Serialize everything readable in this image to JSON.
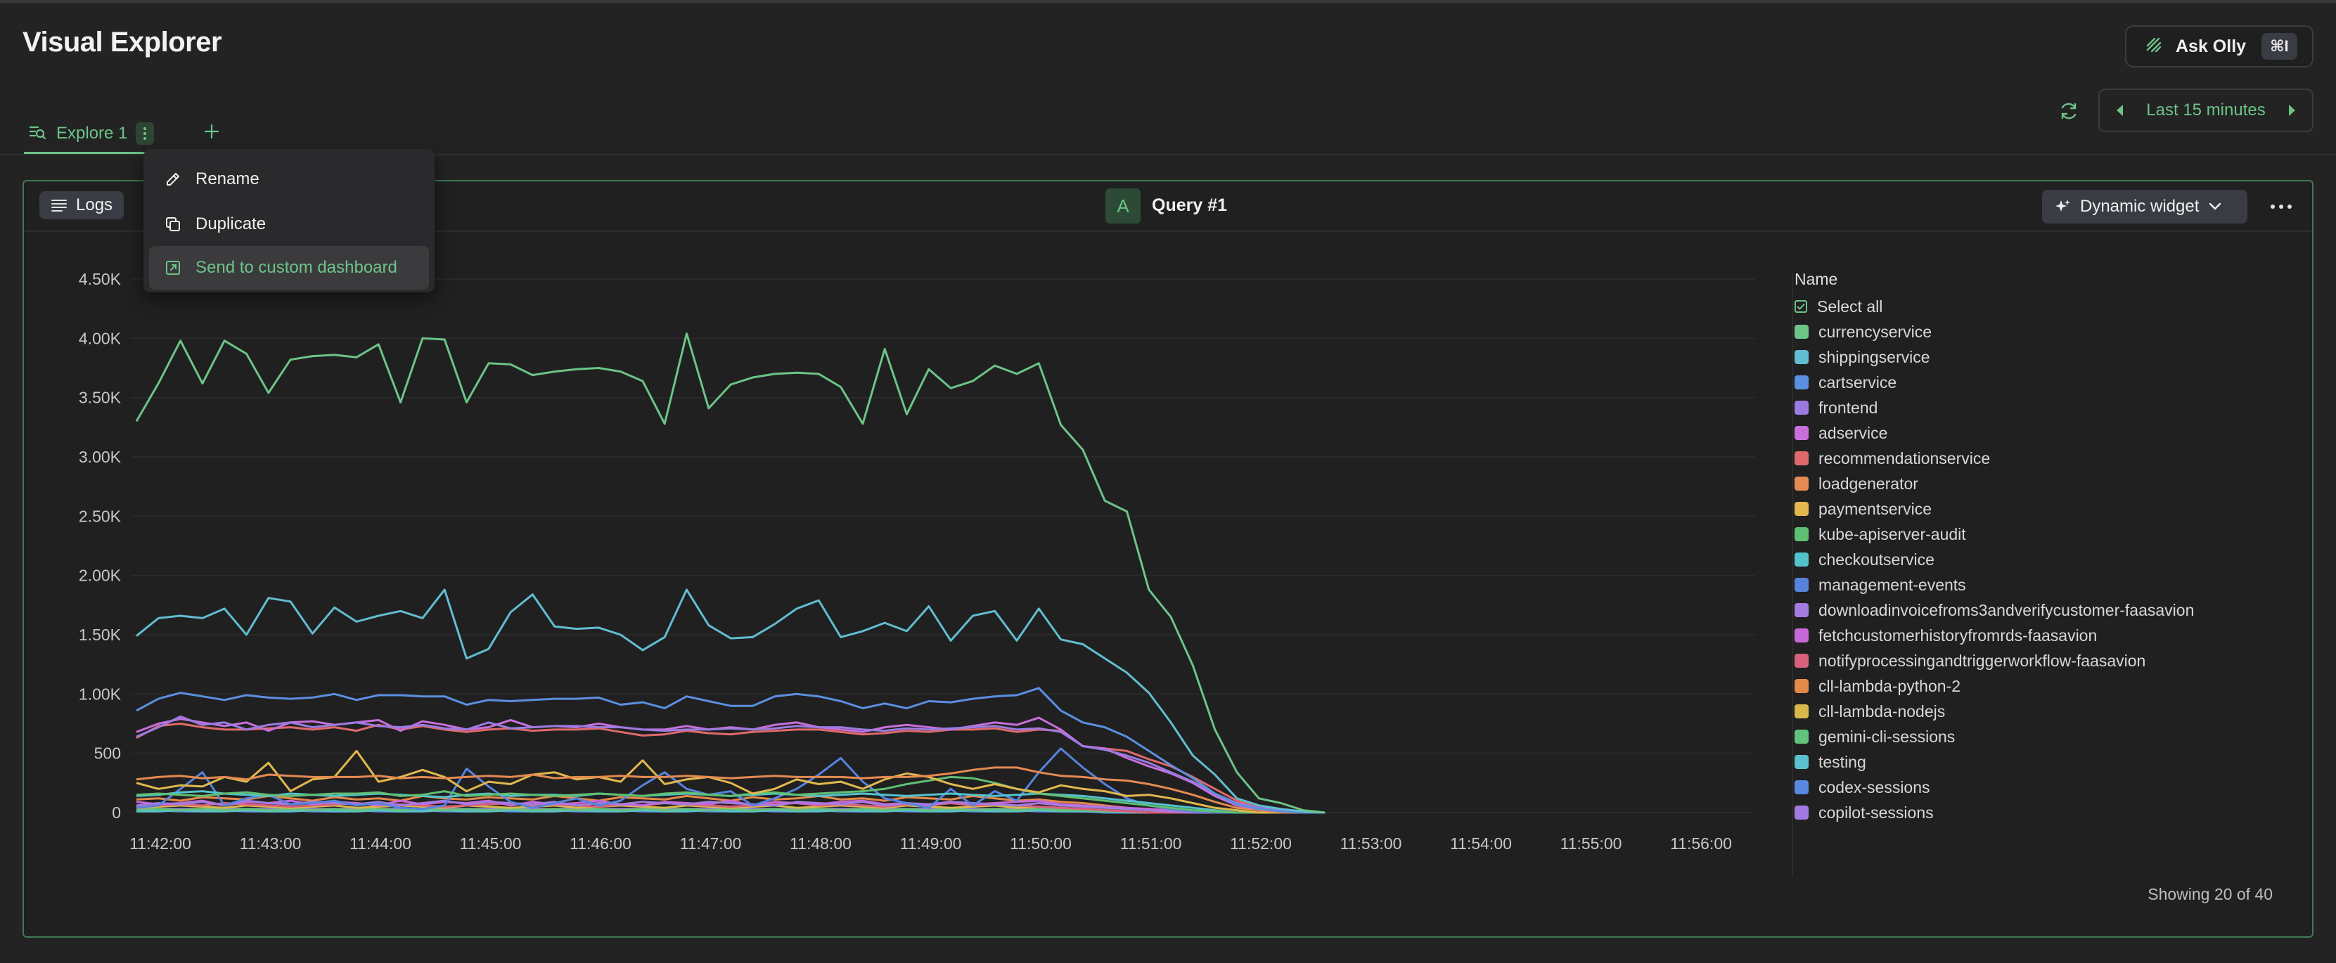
{
  "header": {
    "title": "Visual Explorer",
    "ask_label": "Ask Olly",
    "ask_shortcut": "⌘I"
  },
  "tabs": [
    {
      "label": "Explore 1"
    }
  ],
  "time_range": {
    "label": "Last 15 minutes"
  },
  "tab_menu": {
    "items": [
      {
        "label": "Rename",
        "icon": "pencil-icon"
      },
      {
        "label": "Duplicate",
        "icon": "copy-icon"
      },
      {
        "label": "Send to custom dashboard",
        "icon": "send-to-dashboard-icon"
      }
    ]
  },
  "panel": {
    "source_label": "Logs",
    "query_badge": "A",
    "query_title": "Query #1",
    "widget_label": "Dynamic widget",
    "legend_title": "Name",
    "select_all": "Select all",
    "showing": "Showing 20 of 40"
  },
  "colors": {
    "accent": "#6cc487",
    "panel_border": "#3f7a52",
    "background": "#232324"
  },
  "chart_data": {
    "type": "line",
    "xlabel": "",
    "ylabel": "",
    "x_ticks": [
      "11:42:00",
      "11:43:00",
      "11:44:00",
      "11:45:00",
      "11:46:00",
      "11:47:00",
      "11:48:00",
      "11:49:00",
      "11:50:00",
      "11:51:00",
      "11:52:00",
      "11:53:00",
      "11:54:00",
      "11:55:00",
      "11:56:00"
    ],
    "y_ticks": [
      "0",
      "500",
      "1.00K",
      "1.50K",
      "2.00K",
      "2.50K",
      "3.00K",
      "3.50K",
      "4.00K",
      "4.50K"
    ],
    "ylim": [
      0,
      4500
    ],
    "x_start_minute": 0,
    "x_step_minutes": 0.2,
    "grid": true,
    "legend_position": "right",
    "series": [
      {
        "name": "currencyservice",
        "color": "#6cc487",
        "values": [
          3300,
          3620,
          3980,
          3620,
          3980,
          3870,
          3540,
          3820,
          3850,
          3860,
          3840,
          3950,
          3460,
          4000,
          3990,
          3460,
          3790,
          3780,
          3690,
          3720,
          3740,
          3750,
          3720,
          3640,
          3280,
          4040,
          3410,
          3610,
          3670,
          3700,
          3710,
          3700,
          3590,
          3280,
          3910,
          3360,
          3740,
          3580,
          3640,
          3770,
          3700,
          3790,
          3270,
          3060,
          2630,
          2540,
          1880,
          1650,
          1240,
          700,
          340,
          120,
          80,
          20,
          0
        ]
      },
      {
        "name": "shippingservice",
        "color": "#62bdd1",
        "values": [
          1490,
          1640,
          1660,
          1640,
          1720,
          1500,
          1810,
          1780,
          1510,
          1730,
          1610,
          1660,
          1700,
          1640,
          1880,
          1300,
          1380,
          1690,
          1840,
          1570,
          1550,
          1560,
          1500,
          1370,
          1480,
          1880,
          1580,
          1470,
          1480,
          1590,
          1720,
          1790,
          1480,
          1530,
          1600,
          1530,
          1740,
          1450,
          1660,
          1700,
          1450,
          1720,
          1460,
          1420,
          1300,
          1180,
          1010,
          760,
          480,
          320,
          120,
          60,
          30,
          10,
          0
        ]
      },
      {
        "name": "cartservice",
        "color": "#5b8fe0",
        "values": [
          860,
          960,
          1010,
          980,
          950,
          990,
          970,
          960,
          970,
          1000,
          950,
          990,
          990,
          980,
          980,
          910,
          950,
          940,
          950,
          960,
          960,
          970,
          910,
          930,
          880,
          980,
          940,
          900,
          900,
          980,
          1000,
          980,
          940,
          880,
          920,
          880,
          940,
          930,
          960,
          980,
          990,
          1050,
          860,
          760,
          720,
          640,
          520,
          400,
          290,
          160,
          70,
          30,
          10,
          0,
          0
        ]
      },
      {
        "name": "frontend",
        "color": "#9c7be0",
        "values": [
          640,
          720,
          810,
          740,
          760,
          700,
          740,
          760,
          720,
          740,
          760,
          730,
          720,
          740,
          710,
          700,
          760,
          710,
          720,
          730,
          730,
          720,
          720,
          700,
          690,
          700,
          700,
          710,
          700,
          710,
          730,
          720,
          720,
          700,
          690,
          710,
          700,
          710,
          720,
          730,
          700,
          710,
          680,
          560,
          530,
          480,
          420,
          340,
          260,
          160,
          80,
          40,
          20,
          0,
          0
        ]
      },
      {
        "name": "adservice",
        "color": "#c86fdc",
        "values": [
          680,
          750,
          790,
          760,
          730,
          760,
          690,
          760,
          770,
          740,
          760,
          780,
          690,
          770,
          740,
          700,
          720,
          780,
          720,
          730,
          720,
          750,
          720,
          700,
          700,
          730,
          700,
          720,
          700,
          740,
          760,
          720,
          700,
          680,
          720,
          740,
          720,
          700,
          730,
          760,
          740,
          800,
          700,
          560,
          540,
          460,
          390,
          330,
          250,
          140,
          60,
          30,
          10,
          0,
          0
        ]
      },
      {
        "name": "recommendationservice",
        "color": "#e06a6a",
        "values": [
          630,
          730,
          750,
          720,
          700,
          700,
          710,
          720,
          700,
          720,
          690,
          740,
          700,
          730,
          700,
          680,
          700,
          710,
          690,
          700,
          700,
          710,
          680,
          650,
          660,
          690,
          670,
          660,
          680,
          690,
          700,
          700,
          680,
          660,
          670,
          690,
          680,
          700,
          700,
          710,
          680,
          700,
          690,
          560,
          540,
          520,
          450,
          390,
          300,
          200,
          100,
          40,
          10,
          0,
          0
        ]
      },
      {
        "name": "loadgenerator",
        "color": "#e48a52",
        "values": [
          280,
          300,
          310,
          290,
          300,
          280,
          320,
          310,
          300,
          300,
          300,
          310,
          290,
          300,
          290,
          300,
          310,
          300,
          320,
          290,
          300,
          300,
          310,
          300,
          300,
          310,
          300,
          290,
          300,
          310,
          300,
          300,
          300,
          290,
          300,
          300,
          310,
          330,
          360,
          380,
          380,
          340,
          310,
          300,
          280,
          270,
          240,
          200,
          150,
          90,
          40,
          20,
          0,
          0,
          0
        ]
      },
      {
        "name": "paymentservice",
        "color": "#e2b84e",
        "values": [
          250,
          200,
          230,
          220,
          300,
          260,
          420,
          180,
          280,
          300,
          520,
          260,
          300,
          360,
          300,
          180,
          260,
          240,
          320,
          340,
          280,
          300,
          260,
          440,
          240,
          280,
          300,
          250,
          160,
          200,
          280,
          240,
          260,
          200,
          280,
          330,
          300,
          240,
          200,
          240,
          200,
          170,
          230,
          200,
          180,
          140,
          150,
          120,
          80,
          40,
          20,
          0,
          0,
          0,
          0
        ]
      },
      {
        "name": "kube-apiserver-audit",
        "color": "#5fbf72",
        "values": [
          150,
          160,
          150,
          140,
          160,
          170,
          150,
          140,
          150,
          160,
          160,
          170,
          140,
          150,
          180,
          140,
          150,
          160,
          150,
          140,
          150,
          160,
          150,
          140,
          160,
          170,
          150,
          140,
          160,
          170,
          150,
          160,
          170,
          180,
          200,
          240,
          270,
          300,
          290,
          250,
          200,
          160,
          140,
          120,
          100,
          80,
          60,
          40,
          20,
          10,
          0,
          0,
          0,
          0,
          0
        ]
      },
      {
        "name": "checkoutservice",
        "color": "#54c2cc",
        "values": [
          140,
          150,
          170,
          180,
          160,
          150,
          140,
          160,
          150,
          140,
          150,
          160,
          150,
          140,
          130,
          150,
          160,
          140,
          150,
          150,
          140,
          160,
          150,
          140,
          150,
          160,
          150,
          140,
          150,
          160,
          150,
          140,
          150,
          160,
          150,
          140,
          150,
          160,
          150,
          140,
          150,
          160,
          150,
          140,
          120,
          100,
          80,
          60,
          40,
          20,
          0,
          0,
          0,
          0,
          0
        ]
      },
      {
        "name": "management-events",
        "color": "#5684dd",
        "values": [
          40,
          60,
          200,
          340,
          60,
          120,
          150,
          70,
          80,
          100,
          60,
          80,
          40,
          30,
          60,
          370,
          220,
          90,
          40,
          80,
          120,
          60,
          100,
          230,
          340,
          200,
          150,
          180,
          60,
          120,
          200,
          320,
          460,
          260,
          120,
          80,
          40,
          200,
          60,
          180,
          100,
          340,
          540,
          380,
          240,
          120,
          60,
          30,
          10,
          0,
          0,
          0,
          0,
          0,
          0
        ]
      },
      {
        "name": "downloadinvoicefroms3andverifycustomer-faasavion",
        "color": "#a57be0",
        "values": [
          60,
          80,
          70,
          90,
          60,
          100,
          80,
          70,
          90,
          80,
          70,
          90,
          60,
          80,
          100,
          70,
          90,
          80,
          70,
          90,
          60,
          80,
          70,
          90,
          80,
          70,
          90,
          80,
          70,
          60,
          90,
          80,
          70,
          90,
          60,
          80,
          70,
          90,
          80,
          70,
          60,
          80,
          60,
          50,
          40,
          30,
          20,
          10,
          0,
          0,
          0,
          0,
          0,
          0,
          0
        ]
      },
      {
        "name": "fetchcustomerhistoryfromrds-faasavion",
        "color": "#c868d8",
        "values": [
          90,
          70,
          80,
          100,
          60,
          90,
          80,
          100,
          70,
          90,
          80,
          60,
          100,
          70,
          90,
          80,
          100,
          60,
          90,
          70,
          80,
          100,
          70,
          60,
          90,
          80,
          70,
          100,
          60,
          90,
          80,
          70,
          90,
          100,
          70,
          80,
          60,
          90,
          70,
          80,
          90,
          100,
          70,
          60,
          50,
          40,
          30,
          20,
          10,
          0,
          0,
          0,
          0,
          0,
          0
        ]
      },
      {
        "name": "notifyprocessingandtriggerworkflow-faasavion",
        "color": "#d8607a",
        "values": [
          50,
          60,
          70,
          60,
          80,
          70,
          60,
          50,
          60,
          70,
          80,
          60,
          70,
          60,
          50,
          60,
          70,
          80,
          60,
          70,
          60,
          50,
          70,
          60,
          80,
          70,
          60,
          50,
          60,
          70,
          80,
          60,
          70,
          60,
          50,
          70,
          60,
          80,
          60,
          70,
          60,
          50,
          40,
          30,
          20,
          10,
          0,
          0,
          0,
          0,
          0,
          0,
          0,
          0,
          0
        ]
      },
      {
        "name": "cll-lambda-python-2",
        "color": "#e38a4a",
        "values": [
          110,
          120,
          100,
          130,
          120,
          110,
          140,
          120,
          100,
          130,
          110,
          120,
          100,
          140,
          120,
          110,
          130,
          120,
          110,
          140,
          120,
          100,
          130,
          120,
          110,
          140,
          120,
          100,
          130,
          110,
          120,
          140,
          110,
          120,
          100,
          130,
          120,
          110,
          140,
          120,
          100,
          110,
          90,
          80,
          60,
          40,
          20,
          10,
          0,
          0,
          0,
          0,
          0,
          0,
          0
        ]
      },
      {
        "name": "cll-lambda-nodejs",
        "color": "#d8b84a",
        "values": [
          40,
          50,
          60,
          50,
          40,
          60,
          50,
          40,
          50,
          60,
          40,
          50,
          60,
          50,
          40,
          60,
          50,
          40,
          50,
          60,
          40,
          50,
          60,
          50,
          40,
          60,
          50,
          40,
          50,
          60,
          40,
          50,
          60,
          50,
          40,
          60,
          50,
          40,
          50,
          60,
          40,
          50,
          40,
          30,
          20,
          10,
          0,
          0,
          0,
          0,
          0,
          0,
          0,
          0,
          0
        ]
      },
      {
        "name": "gemini-cli-sessions",
        "color": "#62c47a",
        "values": [
          20,
          30,
          20,
          30,
          20,
          30,
          20,
          30,
          20,
          30,
          20,
          30,
          20,
          30,
          20,
          30,
          20,
          30,
          20,
          30,
          20,
          30,
          20,
          30,
          20,
          30,
          20,
          30,
          20,
          30,
          20,
          30,
          20,
          30,
          20,
          30,
          20,
          30,
          20,
          30,
          20,
          30,
          20,
          20,
          10,
          10,
          0,
          0,
          0,
          0,
          0,
          0,
          0,
          0,
          0
        ]
      },
      {
        "name": "testing",
        "color": "#5ac0cf",
        "values": [
          10,
          10,
          20,
          10,
          10,
          20,
          10,
          10,
          20,
          10,
          10,
          20,
          10,
          10,
          20,
          10,
          10,
          20,
          10,
          10,
          20,
          10,
          10,
          20,
          10,
          10,
          20,
          10,
          10,
          20,
          10,
          10,
          20,
          10,
          10,
          20,
          10,
          10,
          20,
          10,
          10,
          20,
          10,
          10,
          10,
          0,
          0,
          0,
          0,
          0,
          0,
          0,
          0,
          0,
          0
        ]
      },
      {
        "name": "codex-sessions",
        "color": "#5a88e0",
        "values": [
          10,
          20,
          10,
          10,
          20,
          10,
          10,
          20,
          10,
          10,
          20,
          10,
          10,
          20,
          10,
          10,
          20,
          10,
          10,
          20,
          10,
          10,
          20,
          10,
          10,
          20,
          10,
          10,
          20,
          10,
          10,
          20,
          10,
          10,
          20,
          10,
          10,
          20,
          10,
          10,
          20,
          10,
          10,
          10,
          0,
          0,
          0,
          0,
          0,
          0,
          0,
          0,
          0,
          0,
          0
        ]
      },
      {
        "name": "copilot-sessions",
        "color": "#a07ae0",
        "values": [
          30,
          30,
          30,
          30,
          30,
          30,
          30,
          30,
          30,
          30,
          30,
          30,
          30,
          30,
          30,
          30,
          30,
          30,
          30,
          30,
          30,
          30,
          30,
          30,
          30,
          30,
          30,
          30,
          30,
          30,
          30,
          30,
          30,
          30,
          30,
          30,
          30,
          30,
          30,
          30,
          30,
          30,
          30,
          20,
          20,
          10,
          0,
          0,
          0,
          0,
          0,
          0,
          0,
          0,
          0
        ]
      }
    ]
  }
}
